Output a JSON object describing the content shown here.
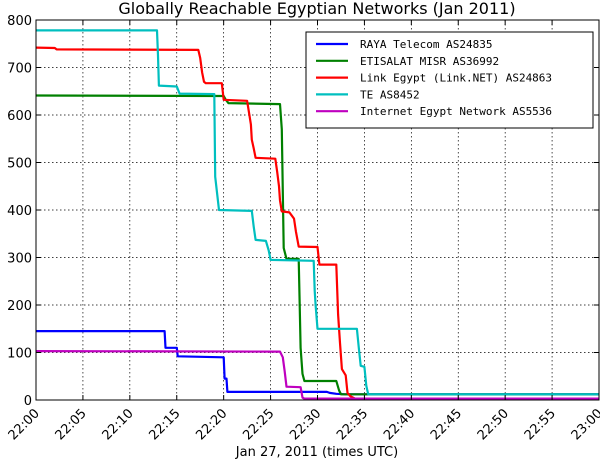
{
  "chart_data": {
    "type": "line",
    "title": "Globally Reachable Egyptian Networks (Jan 2011)",
    "xlabel": "Jan 27, 2011 (times UTC)",
    "ylabel": "",
    "xlim": [
      "22:00",
      "23:00"
    ],
    "ylim": [
      0,
      800
    ],
    "grid": true,
    "legend_position": "top-right",
    "x_ticks": [
      "22:00",
      "22:05",
      "22:10",
      "22:15",
      "22:20",
      "22:25",
      "22:30",
      "22:35",
      "22:40",
      "22:45",
      "22:50",
      "22:55",
      "23:00"
    ],
    "y_ticks": [
      0,
      100,
      200,
      300,
      400,
      500,
      600,
      700,
      800
    ],
    "series": [
      {
        "name": "RAYA Telecom AS24835",
        "color": "#0000ff",
        "points": [
          [
            "22:00",
            145
          ],
          [
            "22:13.7",
            145
          ],
          [
            "22:13.8",
            110
          ],
          [
            "22:15",
            110
          ],
          [
            "22:15.1",
            92
          ],
          [
            "22:20",
            90
          ],
          [
            "22:20.1",
            45
          ],
          [
            "22:20.3",
            45
          ],
          [
            "22:20.4",
            17
          ],
          [
            "22:31",
            17
          ],
          [
            "22:31.3",
            15
          ],
          [
            "22:32",
            13
          ],
          [
            "22:33",
            12
          ],
          [
            "23:00",
            12
          ]
        ]
      },
      {
        "name": "ETISALAT MISR AS36992",
        "color": "#008000",
        "points": [
          [
            "22:00",
            641
          ],
          [
            "22:20",
            640
          ],
          [
            "22:20.2",
            633
          ],
          [
            "22:20.5",
            625
          ],
          [
            "22:26",
            623
          ],
          [
            "22:26.2",
            570
          ],
          [
            "22:26.4",
            320
          ],
          [
            "22:26.7",
            297
          ],
          [
            "22:28",
            297
          ],
          [
            "22:28.1",
            200
          ],
          [
            "22:28.2",
            110
          ],
          [
            "22:28.4",
            55
          ],
          [
            "22:28.6",
            40
          ],
          [
            "22:32",
            40
          ],
          [
            "22:32.3",
            20
          ],
          [
            "22:32.5",
            12
          ],
          [
            "23:00",
            12
          ]
        ]
      },
      {
        "name": "Link Egypt (Link.NET) AS24863",
        "color": "#ff0000",
        "points": [
          [
            "22:00",
            742
          ],
          [
            "22:02",
            741
          ],
          [
            "22:02.2",
            738
          ],
          [
            "22:17.3",
            737
          ],
          [
            "22:17.5",
            720
          ],
          [
            "22:17.7",
            690
          ],
          [
            "22:17.9",
            670
          ],
          [
            "22:18.1",
            667
          ],
          [
            "22:19.8",
            667
          ],
          [
            "22:20",
            632
          ],
          [
            "22:22.5",
            630
          ],
          [
            "22:22.7",
            605
          ],
          [
            "22:22.9",
            580
          ],
          [
            "22:23",
            548
          ],
          [
            "22:23.2",
            530
          ],
          [
            "22:23.4",
            510
          ],
          [
            "22:25.5",
            508
          ],
          [
            "22:25.7",
            480
          ],
          [
            "22:25.9",
            450
          ],
          [
            "22:26",
            420
          ],
          [
            "22:26.2",
            397
          ],
          [
            "22:27",
            395
          ],
          [
            "22:27.2",
            390
          ],
          [
            "22:27.5",
            382
          ],
          [
            "22:27.7",
            355
          ],
          [
            "22:28",
            323
          ],
          [
            "22:30",
            322
          ],
          [
            "22:30.2",
            285
          ],
          [
            "22:32",
            285
          ],
          [
            "22:32.2",
            180
          ],
          [
            "22:32.4",
            120
          ],
          [
            "22:32.6",
            65
          ],
          [
            "22:33",
            52
          ],
          [
            "22:33.2",
            15
          ],
          [
            "22:33.5",
            8
          ],
          [
            "22:34",
            3
          ],
          [
            "23:00",
            3
          ]
        ]
      },
      {
        "name": "TE AS8452",
        "color": "#00bfbf",
        "points": [
          [
            "22:00",
            778
          ],
          [
            "22:12.9",
            778
          ],
          [
            "22:13",
            725
          ],
          [
            "22:13.1",
            662
          ],
          [
            "22:15",
            660
          ],
          [
            "22:15.3",
            645
          ],
          [
            "22:19",
            644
          ],
          [
            "22:19.1",
            470
          ],
          [
            "22:19.3",
            435
          ],
          [
            "22:19.5",
            400
          ],
          [
            "22:23",
            398
          ],
          [
            "22:23.2",
            365
          ],
          [
            "22:23.4",
            337
          ],
          [
            "22:24.5",
            335
          ],
          [
            "22:24.8",
            315
          ],
          [
            "22:25",
            295
          ],
          [
            "22:29.6",
            293
          ],
          [
            "22:29.7",
            230
          ],
          [
            "22:29.8",
            200
          ],
          [
            "22:30",
            150
          ],
          [
            "22:34.2",
            150
          ],
          [
            "22:34.4",
            110
          ],
          [
            "22:34.6",
            72
          ],
          [
            "22:35",
            70
          ],
          [
            "22:35.2",
            30
          ],
          [
            "22:35.4",
            12
          ],
          [
            "23:00",
            12
          ]
        ]
      },
      {
        "name": "Internet Egypt Network AS5536",
        "color": "#bf00bf",
        "points": [
          [
            "22:00",
            103
          ],
          [
            "22:26",
            102
          ],
          [
            "22:26.3",
            90
          ],
          [
            "22:26.5",
            60
          ],
          [
            "22:26.7",
            28
          ],
          [
            "22:28.2",
            27
          ],
          [
            "22:28.4",
            5
          ],
          [
            "22:28.6",
            3
          ],
          [
            "23:00",
            3
          ]
        ]
      }
    ]
  }
}
